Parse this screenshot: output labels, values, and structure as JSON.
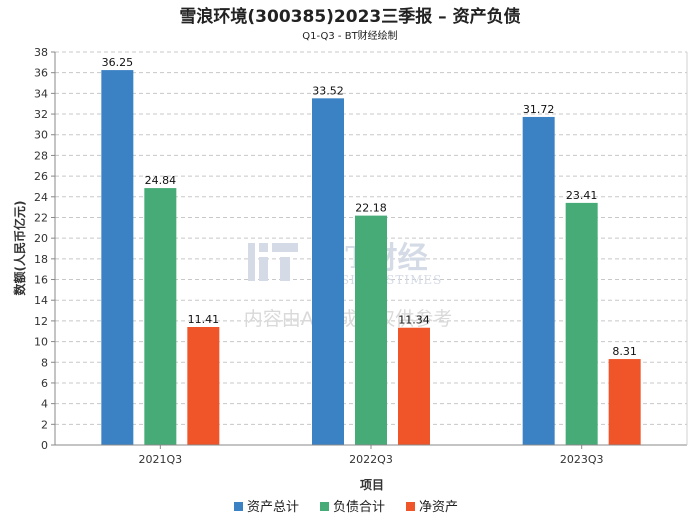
{
  "title": "雪浪环境(300385)2023三季报 – 资产负债",
  "subtitle": "Q1-Q3 - BT财经绘制",
  "watermark": {
    "logo": "BT财经",
    "logo_sub": "BUSINESSTIMES",
    "note": "内容由AI生成，仅供参考"
  },
  "colors": {
    "grid": "#c8c8c8",
    "axis": "#888888",
    "background": "#ffffff"
  },
  "chart_data": {
    "type": "bar",
    "xlabel": "项目",
    "ylabel": "数额(人民币亿元)",
    "ylim": [
      0,
      38
    ],
    "ytick_step": 2,
    "grid": true,
    "legend_position": "bottom",
    "categories": [
      "2021Q3",
      "2022Q3",
      "2023Q3"
    ],
    "series": [
      {
        "name": "资产总计",
        "color": "#3a82c4",
        "values": [
          36.25,
          33.52,
          31.72
        ]
      },
      {
        "name": "负债合计",
        "color": "#46ab77",
        "values": [
          24.84,
          22.18,
          23.41
        ]
      },
      {
        "name": "净资产",
        "color": "#f0552a",
        "values": [
          11.41,
          11.34,
          8.31
        ]
      }
    ]
  }
}
